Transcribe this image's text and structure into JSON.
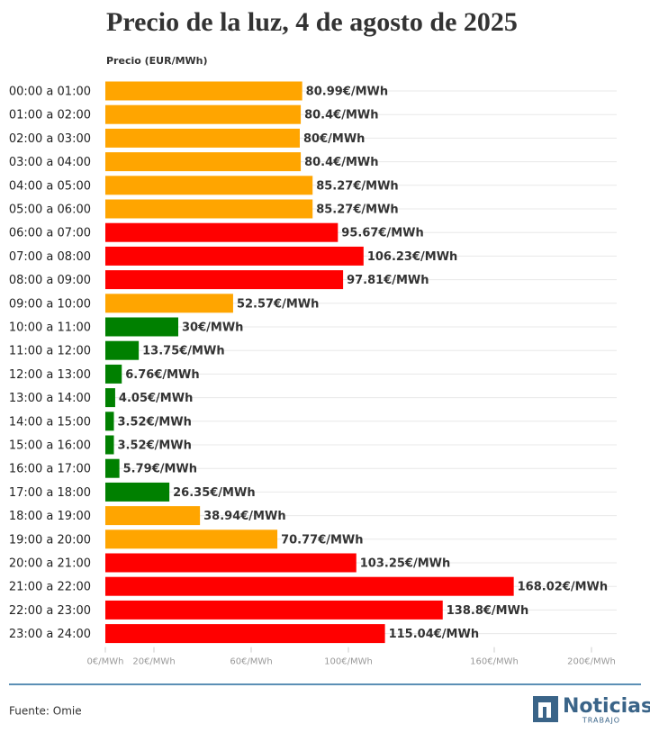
{
  "chart_data": {
    "type": "bar",
    "orientation": "horizontal",
    "title": "Precio de la luz, 4 de agosto de 2025",
    "subtitle": "Precio (EUR/MWh)",
    "categories": [
      "00:00 a 01:00",
      "01:00 a 02:00",
      "02:00 a 03:00",
      "03:00 a 04:00",
      "04:00 a 05:00",
      "05:00 a 06:00",
      "06:00 a 07:00",
      "07:00 a 08:00",
      "08:00 a 09:00",
      "09:00 a 10:00",
      "10:00 a 11:00",
      "11:00 a 12:00",
      "12:00 a 13:00",
      "13:00 a 14:00",
      "14:00 a 15:00",
      "15:00 a 16:00",
      "16:00 a 17:00",
      "17:00 a 18:00",
      "18:00 a 19:00",
      "19:00 a 20:00",
      "20:00 a 21:00",
      "21:00 a 22:00",
      "22:00 a 23:00",
      "23:00 a 24:00"
    ],
    "values": [
      80.99,
      80.4,
      80,
      80.4,
      85.27,
      85.27,
      95.67,
      106.23,
      97.81,
      52.57,
      30,
      13.75,
      6.76,
      4.05,
      3.52,
      3.52,
      5.79,
      26.35,
      38.94,
      70.77,
      103.25,
      168.02,
      138.8,
      115.04
    ],
    "value_labels": [
      "80.99€/MWh",
      "80.4€/MWh",
      "80€/MWh",
      "80.4€/MWh",
      "85.27€/MWh",
      "85.27€/MWh",
      "95.67€/MWh",
      "106.23€/MWh",
      "97.81€/MWh",
      "52.57€/MWh",
      "30€/MWh",
      "13.75€/MWh",
      "6.76€/MWh",
      "4.05€/MWh",
      "3.52€/MWh",
      "3.52€/MWh",
      "5.79€/MWh",
      "26.35€/MWh",
      "38.94€/MWh",
      "70.77€/MWh",
      "103.25€/MWh",
      "168.02€/MWh",
      "138.8€/MWh",
      "115.04€/MWh"
    ],
    "colors": [
      "#ffa500",
      "#ffa500",
      "#ffa500",
      "#ffa500",
      "#ffa500",
      "#ffa500",
      "#ff0000",
      "#ff0000",
      "#ff0000",
      "#ffa500",
      "#008000",
      "#008000",
      "#008000",
      "#008000",
      "#008000",
      "#008000",
      "#008000",
      "#008000",
      "#ffa500",
      "#ffa500",
      "#ff0000",
      "#ff0000",
      "#ff0000",
      "#ff0000"
    ],
    "xlim": [
      0,
      200
    ],
    "xticks": [
      {
        "value": 0,
        "label": "0€/MWh"
      },
      {
        "value": 20,
        "label": "20€/MWh"
      },
      {
        "value": 60,
        "label": "60€/MWh"
      },
      {
        "value": 100,
        "label": "100€/MWh"
      },
      {
        "value": 160,
        "label": "160€/MWh"
      },
      {
        "value": 200,
        "label": "200€/MWh"
      }
    ]
  },
  "footer": {
    "source": "Fuente: Omie",
    "logo_name": "Noticias",
    "logo_sub": "TRABAJO"
  }
}
